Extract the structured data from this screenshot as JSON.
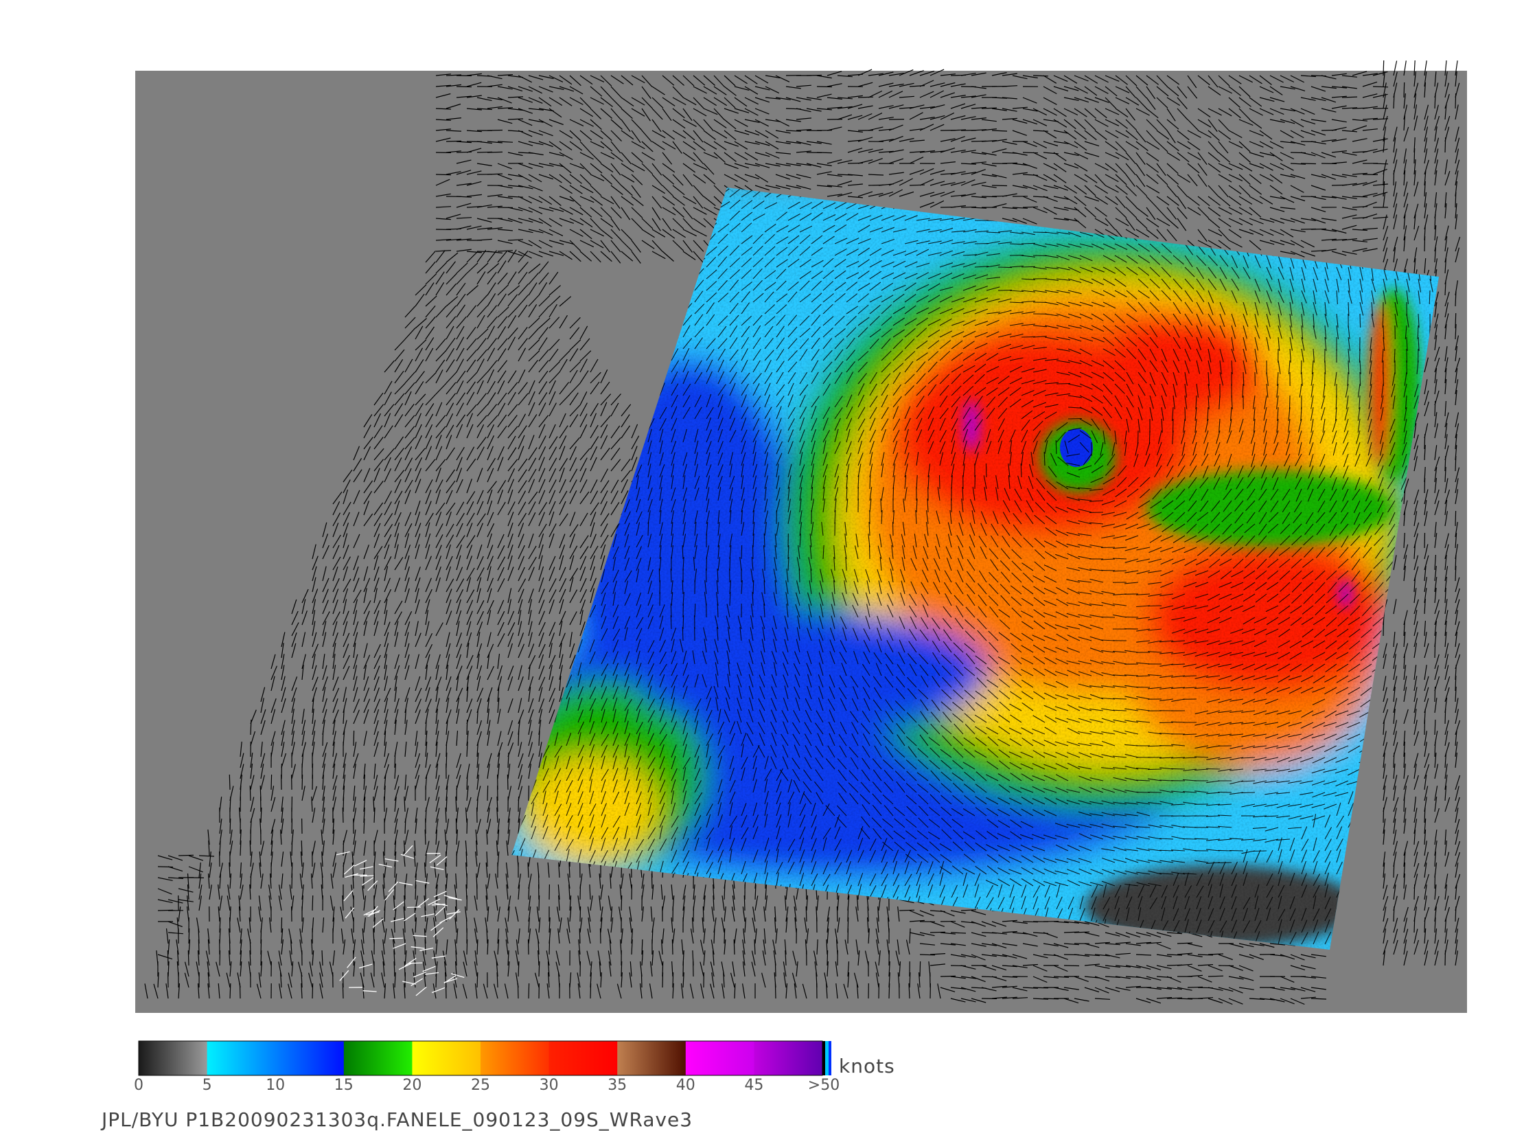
{
  "title": "",
  "colorbar": {
    "units": "knots",
    "ticks": [
      "0",
      "5",
      "10",
      "15",
      "20",
      "25",
      "30",
      "35",
      "40",
      "45",
      ">50"
    ],
    "bands": [
      {
        "from": "0",
        "to": "5",
        "colors": [
          "#1a1a1a",
          "#9a9a9a"
        ]
      },
      {
        "from": "5",
        "to": "15",
        "colors": [
          "#00f0ff",
          "#0010ff"
        ]
      },
      {
        "from": "15",
        "to": "20",
        "colors": [
          "#007a00",
          "#22ee00"
        ]
      },
      {
        "from": "20",
        "to": "25",
        "colors": [
          "#ffff00",
          "#ffc000"
        ]
      },
      {
        "from": "25",
        "to": "30",
        "colors": [
          "#ff9900",
          "#ff3000"
        ]
      },
      {
        "from": "30",
        "to": "35",
        "colors": [
          "#ff2000",
          "#ff0000"
        ]
      },
      {
        "from": "35",
        "to": "40",
        "colors": [
          "#c08050",
          "#501000"
        ]
      },
      {
        "from": "40",
        "to": "45",
        "colors": [
          "#ff00ff",
          "#cc00ee"
        ]
      },
      {
        "from": "45",
        "to": "50",
        "colors": [
          "#c000e0",
          "#6000b0"
        ]
      }
    ]
  },
  "footer": "JPL/BYU  P1B20090231303q.FANELE_090123_09S_WRave3",
  "map": {
    "background": "#7f7f7f",
    "swath_colors": {
      "calm": "#3c3c3c",
      "light": "#29c8ff",
      "moderate": "#0a3cf0",
      "fresh": "#16b400",
      "strong": "#ffd400",
      "gale": "#ff7a00",
      "storm": "#ff1e00",
      "extreme": "#b000e0"
    },
    "storm_eye_color": "#0a2cf0",
    "vector_color": "#000000",
    "flagged_vector_color": "#ffffff"
  }
}
